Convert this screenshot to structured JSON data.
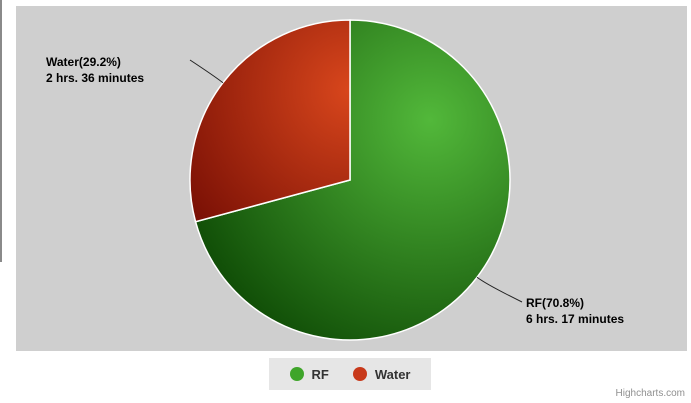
{
  "chart_data": {
    "type": "pie",
    "title": "",
    "slices": [
      {
        "name": "RF",
        "percent": 70.8,
        "label": "RF(70.8%)",
        "duration": "6 hrs. 17 minutes",
        "color": "#3fa52a"
      },
      {
        "name": "Water",
        "percent": 29.2,
        "label": "Water(29.2%)",
        "duration": "2 hrs. 36 minutes",
        "color": "#c8391a"
      }
    ],
    "start_angle": 0,
    "legend_position": "bottom",
    "credits": "Highcharts.com"
  }
}
